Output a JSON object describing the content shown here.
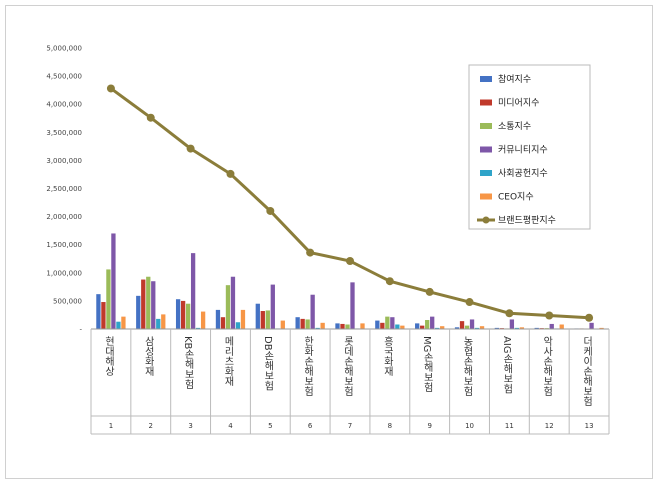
{
  "chart_data": {
    "type": "bar",
    "title": "",
    "xlabel": "",
    "ylabel": "",
    "ylim": [
      0,
      5000000
    ],
    "yticks": [
      "5,000,000",
      "4,500,000",
      "4,000,000",
      "3,500,000",
      "3,000,000",
      "2,500,000",
      "2,000,000",
      "1,500,000",
      "1,000,000",
      "500,000",
      "-"
    ],
    "categories": [
      "현대해상",
      "삼성화재",
      "KB손해보험",
      "메리츠화재",
      "DB손해보험",
      "한화손해보험",
      "롯데손해보험",
      "흥국화재",
      "MG손해보험",
      "농협손해보험",
      "AIG손해보험",
      "악사손해보험",
      "더케이손해보험"
    ],
    "ranks": [
      "1",
      "2",
      "3",
      "4",
      "5",
      "6",
      "7",
      "8",
      "9",
      "10",
      "11",
      "12",
      "13"
    ],
    "legend_position": "top-right",
    "grid": false,
    "series": [
      {
        "name": "참여지수",
        "color": "#4472c4",
        "kind": "bar",
        "values": [
          620000,
          590000,
          530000,
          340000,
          450000,
          210000,
          100000,
          150000,
          100000,
          30000,
          20000,
          20000,
          10000
        ]
      },
      {
        "name": "미디어지수",
        "color": "#c0392b",
        "kind": "bar",
        "values": [
          480000,
          880000,
          500000,
          210000,
          320000,
          180000,
          90000,
          110000,
          60000,
          140000,
          15000,
          15000,
          10000
        ]
      },
      {
        "name": "소통지수",
        "color": "#9bbb59",
        "kind": "bar",
        "values": [
          1060000,
          930000,
          450000,
          780000,
          330000,
          170000,
          80000,
          220000,
          160000,
          60000,
          10000,
          15000,
          5000
        ]
      },
      {
        "name": "커뮤니티지수",
        "color": "#7e57a8",
        "kind": "bar",
        "values": [
          1700000,
          850000,
          1350000,
          930000,
          790000,
          610000,
          830000,
          210000,
          220000,
          170000,
          170000,
          90000,
          110000
        ]
      },
      {
        "name": "사회공헌지수",
        "color": "#2fa4c9",
        "kind": "bar",
        "values": [
          130000,
          180000,
          20000,
          120000,
          10000,
          20000,
          10000,
          80000,
          20000,
          20000,
          20000,
          10000,
          5000
        ]
      },
      {
        "name": "CEO지수",
        "color": "#f79646",
        "kind": "bar",
        "values": [
          220000,
          260000,
          310000,
          340000,
          150000,
          110000,
          100000,
          60000,
          50000,
          50000,
          30000,
          80000,
          20000
        ]
      },
      {
        "name": "브랜드평판지수",
        "color": "#8b7d3a",
        "kind": "line",
        "values": [
          4280000,
          3760000,
          3210000,
          2760000,
          2100000,
          1360000,
          1210000,
          850000,
          660000,
          480000,
          280000,
          240000,
          200000
        ]
      }
    ]
  }
}
